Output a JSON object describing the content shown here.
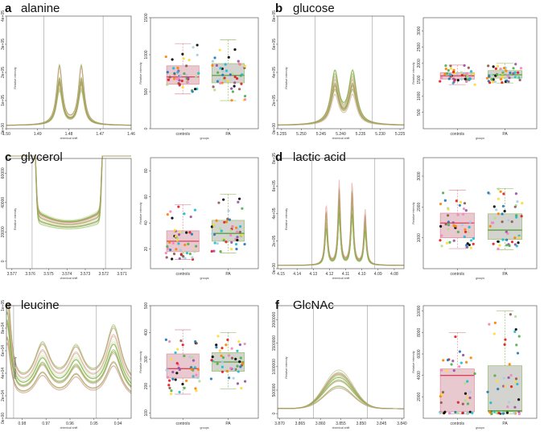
{
  "figure": {
    "panels": [
      {
        "letter": "a",
        "title": "alanine"
      },
      {
        "letter": "b",
        "title": "glucose"
      },
      {
        "letter": "c",
        "title": "glycerol"
      },
      {
        "letter": "d",
        "title": "lactic acid"
      },
      {
        "letter": "e",
        "title": "leucine"
      },
      {
        "letter": "f",
        "title": "GlcNAc"
      }
    ]
  },
  "colors": {
    "spectrum_green": "#7aab3a",
    "spectrum_light": "#c9d9a6",
    "spectrum_red": "#e58a8a",
    "controls_box_fill": "#e7c9cf",
    "controls_box_edge": "#d9909b",
    "controls_median": "#e0405a",
    "pa_box_fill": "#d3d3cf",
    "pa_box_edge": "#9bbf6a",
    "pa_median": "#55a43c",
    "points": [
      "#1f77b4",
      "#e41a1c",
      "#4daf4a",
      "#984ea3",
      "#ff7f00",
      "#ffd92f",
      "#000000",
      "#f781bf",
      "#17becf",
      "#a6cee3",
      "#b2df8a",
      "#8c564b"
    ]
  },
  "chart_data": [
    {
      "type": "line",
      "metabolite": "alanine",
      "xlabel": "chemical shift",
      "ylabel": "Relative intensity",
      "x_ticks": [
        "1.50",
        "1.49",
        "1.48",
        "1.47",
        "1.46"
      ],
      "xlim": [
        1.5,
        1.46
      ],
      "y_ticks": [
        "0e+00",
        "1e+05",
        "2e+05",
        "3e+05",
        "4e+05"
      ],
      "ylim": [
        0,
        400000
      ],
      "peaks": [
        1.483,
        1.476
      ],
      "region_lines": [
        1.488,
        1.469
      ]
    },
    {
      "type": "box",
      "metabolite": "alanine",
      "xlabel": "groups",
      "ylabel": "Relative intensity",
      "categories": [
        "controls",
        "PA"
      ],
      "y_ticks": [
        "0",
        "500",
        "1000",
        "1500"
      ],
      "ylim": [
        0,
        1500
      ],
      "stats": [
        {
          "group": "controls",
          "q1": 600,
          "median": 700,
          "q3": 850,
          "whisker_low": 470,
          "whisker_high": 1150
        },
        {
          "group": "PA",
          "q1": 620,
          "median": 720,
          "q3": 880,
          "whisker_low": 380,
          "whisker_high": 1200
        }
      ]
    },
    {
      "type": "line",
      "metabolite": "glucose",
      "xlabel": "chemical shift",
      "ylabel": "Relative intensity",
      "x_ticks": [
        "5.255",
        "5.250",
        "5.245",
        "5.240",
        "5.235",
        "5.230",
        "5.225"
      ],
      "xlim": [
        5.256,
        5.224
      ],
      "y_ticks": [
        "0e+00",
        "2e+05",
        "4e+05",
        "6e+05",
        "8e+05"
      ],
      "ylim": [
        0,
        800000
      ],
      "peaks": [
        5.2415,
        5.237
      ],
      "region_lines": [
        5.2465,
        5.232
      ]
    },
    {
      "type": "box",
      "metabolite": "glucose",
      "xlabel": "groups",
      "ylabel": "Relative intensity",
      "categories": [
        "controls",
        "PA"
      ],
      "y_ticks": [
        "500",
        "1000",
        "1500",
        "2000",
        "2500",
        "3000"
      ],
      "ylim": [
        0,
        3400
      ],
      "stats": [
        {
          "group": "controls",
          "q1": 1520,
          "median": 1620,
          "q3": 1720,
          "whisker_low": 1350,
          "whisker_high": 1950
        },
        {
          "group": "PA",
          "q1": 1550,
          "median": 1650,
          "q3": 1780,
          "whisker_low": 1400,
          "whisker_high": 2000
        }
      ]
    },
    {
      "type": "line",
      "metabolite": "glycerol",
      "xlabel": "chemical shift",
      "ylabel": "Relative intensity",
      "x_ticks": [
        "3.577",
        "3.576",
        "3.575",
        "3.574",
        "3.573",
        "3.572",
        "3.571"
      ],
      "xlim": [
        3.5773,
        3.5705
      ],
      "y_ticks": [
        "0",
        "20000",
        "40000",
        "60000"
      ],
      "ylim": [
        -5000,
        70000
      ],
      "region_lines": [
        3.5759,
        3.5719
      ]
    },
    {
      "type": "box",
      "metabolite": "glycerol",
      "xlabel": "groups",
      "ylabel": "Relative intensity",
      "categories": [
        "controls",
        "PA"
      ],
      "y_ticks": [
        "20",
        "40",
        "60",
        "80"
      ],
      "ylim": [
        5,
        90
      ],
      "stats": [
        {
          "group": "controls",
          "q1": 18,
          "median": 26,
          "q3": 34,
          "whisker_low": 12,
          "whisker_high": 54
        },
        {
          "group": "PA",
          "q1": 26,
          "median": 32,
          "q3": 42,
          "whisker_low": 17,
          "whisker_high": 62
        }
      ]
    },
    {
      "type": "line",
      "metabolite": "lactic acid",
      "xlabel": "chemical shift",
      "ylabel": "Relative intensity",
      "x_ticks": [
        "4.15",
        "4.14",
        "4.13",
        "4.12",
        "4.11",
        "4.10",
        "4.09",
        "4.08"
      ],
      "xlim": [
        4.152,
        4.074
      ],
      "y_ticks": [
        "0e+00",
        "2e+05",
        "4e+05",
        "6e+05",
        "8e+05"
      ],
      "ylim": [
        0,
        800000
      ],
      "peaks": [
        4.122,
        4.114,
        4.106,
        4.098
      ],
      "region_lines": [
        4.131,
        4.092
      ]
    },
    {
      "type": "box",
      "metabolite": "lactic acid",
      "xlabel": "groups",
      "ylabel": "Relative intensity",
      "categories": [
        "controls",
        "PA"
      ],
      "y_ticks": [
        "1000",
        "2000",
        "3000"
      ],
      "ylim": [
        0,
        3600
      ],
      "stats": [
        {
          "group": "controls",
          "q1": 1000,
          "median": 1480,
          "q3": 1800,
          "whisker_low": 650,
          "whisker_high": 2550
        },
        {
          "group": "PA",
          "q1": 950,
          "median": 1250,
          "q3": 1780,
          "whisker_low": 620,
          "whisker_high": 2600
        }
      ]
    },
    {
      "type": "line",
      "metabolite": "leucine",
      "xlabel": "chemical shift",
      "ylabel": "Relative intensity",
      "x_ticks": [
        "0.98",
        "0.97",
        "0.96",
        "0.95",
        "0.94"
      ],
      "xlim": [
        0.9865,
        0.9345
      ],
      "y_ticks": [
        "0e+00",
        "2e+04",
        "4e+04",
        "6e+04",
        "8e+04",
        "1e+05"
      ],
      "ylim": [
        0,
        100000
      ],
      "region_lines": [
        0.9835,
        0.949
      ]
    },
    {
      "type": "box",
      "metabolite": "leucine",
      "xlabel": "groups",
      "ylabel": "Relative intensity",
      "categories": [
        "controls",
        "PA"
      ],
      "y_ticks": [
        "100",
        "200",
        "300",
        "400",
        "500"
      ],
      "ylim": [
        80,
        500
      ],
      "stats": [
        {
          "group": "controls",
          "q1": 230,
          "median": 265,
          "q3": 320,
          "whisker_low": 170,
          "whisker_high": 410
        },
        {
          "group": "PA",
          "q1": 255,
          "median": 290,
          "q3": 325,
          "whisker_low": 190,
          "whisker_high": 400
        }
      ]
    },
    {
      "type": "line",
      "metabolite": "GlcNAc",
      "xlabel": "chemical shift",
      "ylabel": "Relative intensity",
      "x_ticks": [
        "3.870",
        "3.865",
        "3.860",
        "3.855",
        "3.850",
        "3.845",
        "3.840"
      ],
      "xlim": [
        3.8705,
        3.8395
      ],
      "y_ticks": [
        "0",
        "500000",
        "1000000",
        "1500000",
        "2000000"
      ],
      "ylim": [
        -100000,
        2300000
      ],
      "region_lines": [
        3.8617,
        3.8485
      ]
    },
    {
      "type": "box",
      "metabolite": "GlcNAc",
      "xlabel": "groups",
      "ylabel": "Relative intensity",
      "categories": [
        "controls",
        "PA"
      ],
      "y_ticks": [
        "2000",
        "4000",
        "6000",
        "8000",
        "10000"
      ],
      "ylim": [
        0,
        10500
      ],
      "stats": [
        {
          "group": "controls",
          "q1": 600,
          "median": 4000,
          "q3": 4600,
          "whisker_low": 400,
          "whisker_high": 8000
        },
        {
          "group": "PA",
          "q1": 600,
          "median": 700,
          "q3": 4900,
          "whisker_low": 400,
          "whisker_high": 10000
        }
      ]
    }
  ]
}
